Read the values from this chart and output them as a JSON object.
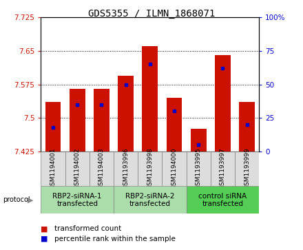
{
  "title": "GDS5355 / ILMN_1868071",
  "samples": [
    "GSM1194001",
    "GSM1194002",
    "GSM1194003",
    "GSM1193996",
    "GSM1193998",
    "GSM1194000",
    "GSM1193995",
    "GSM1193997",
    "GSM1193999"
  ],
  "transformed_counts": [
    7.535,
    7.565,
    7.565,
    7.595,
    7.66,
    7.545,
    7.475,
    7.64,
    7.535
  ],
  "percentile_ranks": [
    18,
    35,
    35,
    50,
    65,
    30,
    5,
    62,
    20
  ],
  "y_min": 7.425,
  "y_max": 7.725,
  "y_ticks_left": [
    7.425,
    7.5,
    7.575,
    7.65,
    7.725
  ],
  "y_ticks_right": [
    0,
    25,
    50,
    75,
    100
  ],
  "bar_color": "#CC1100",
  "percentile_color": "#0000CC",
  "group_labels": [
    "RBP2-siRNA-1\ntransfected",
    "RBP2-siRNA-2\ntransfected",
    "control siRNA\ntransfected"
  ],
  "group_ranges": [
    [
      0,
      3
    ],
    [
      3,
      6
    ],
    [
      6,
      9
    ]
  ],
  "group_colors": [
    "#AADDAA",
    "#AADDAA",
    "#55CC55"
  ],
  "sample_box_color": "#DDDDDD",
  "legend_labels": [
    "transformed count",
    "percentile rank within the sample"
  ],
  "legend_colors": [
    "#CC1100",
    "#0000CC"
  ],
  "title_fontsize": 10,
  "tick_fontsize": 7.5,
  "sample_fontsize": 6.5,
  "group_fontsize": 7.5,
  "legend_fontsize": 7.5
}
